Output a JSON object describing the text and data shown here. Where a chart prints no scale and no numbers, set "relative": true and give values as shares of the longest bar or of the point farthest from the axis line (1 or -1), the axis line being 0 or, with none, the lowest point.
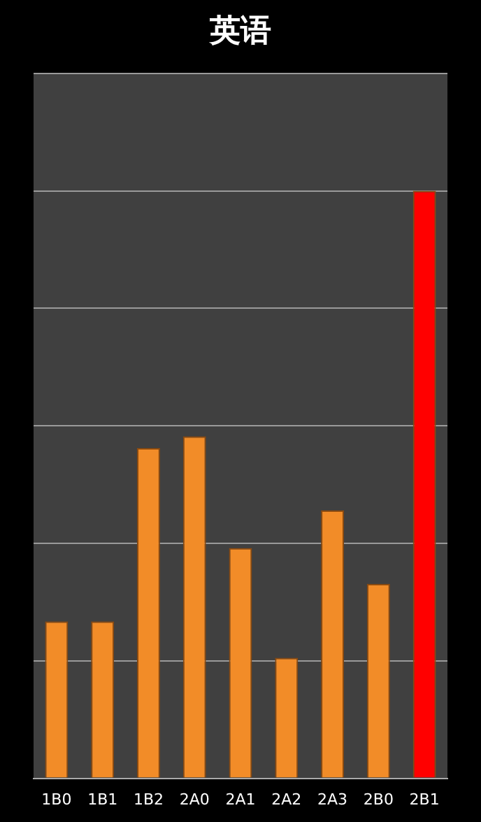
{
  "chart_data": {
    "type": "bar",
    "title": "英语",
    "relative": true,
    "grid": "y",
    "categories": [
      "1B0",
      "1B1",
      "1B2",
      "2A0",
      "2A1",
      "2A2",
      "2A3",
      "2B0",
      "2B1"
    ],
    "values": [
      0.267,
      0.267,
      0.562,
      0.582,
      0.392,
      0.205,
      0.456,
      0.331,
      1
    ],
    "colors": [
      "#f28c28",
      "#f28c28",
      "#f28c28",
      "#f28c28",
      "#f28c28",
      "#f28c28",
      "#f28c28",
      "#f28c28",
      "#ff0000"
    ]
  }
}
